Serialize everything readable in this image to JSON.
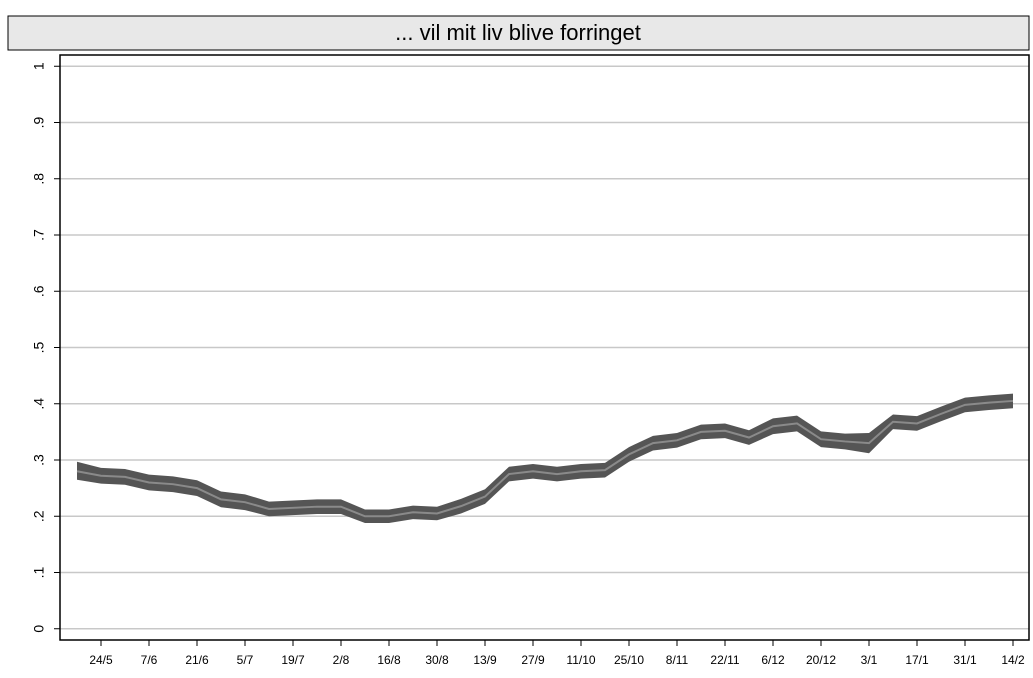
{
  "chart_data": {
    "type": "line",
    "title": "... vil mit liv blive forringet",
    "categories": [
      null,
      "24/5",
      null,
      "7/6",
      null,
      "21/6",
      null,
      "5/7",
      null,
      "19/7",
      null,
      "2/8",
      null,
      "16/8",
      null,
      "30/8",
      null,
      "13/9",
      null,
      "27/9",
      null,
      "11/10",
      null,
      "25/10",
      null,
      "8/11",
      null,
      "22/11",
      null,
      "6/12",
      null,
      "20/12",
      null,
      "3/1",
      null,
      "17/1",
      null,
      "31/1",
      null,
      "14/2"
    ],
    "series": [
      {
        "color": "#555555",
        "line_color": "#8a8a8a",
        "values": [
          0.28,
          0.272,
          0.27,
          0.26,
          0.257,
          0.25,
          0.23,
          0.225,
          0.213,
          0.215,
          0.217,
          0.217,
          0.2,
          0.2,
          0.207,
          0.205,
          0.218,
          0.235,
          0.275,
          0.28,
          0.275,
          0.28,
          0.282,
          0.31,
          0.33,
          0.335,
          0.35,
          0.352,
          0.34,
          0.36,
          0.365,
          0.337,
          0.333,
          0.33,
          0.368,
          0.365,
          0.382,
          0.398,
          0.402,
          0.405
        ],
        "lower": [
          0.265,
          0.258,
          0.256,
          0.246,
          0.243,
          0.236,
          0.216,
          0.211,
          0.2,
          0.202,
          0.204,
          0.204,
          0.188,
          0.188,
          0.195,
          0.193,
          0.205,
          0.222,
          0.262,
          0.267,
          0.262,
          0.267,
          0.269,
          0.297,
          0.317,
          0.322,
          0.337,
          0.339,
          0.327,
          0.346,
          0.351,
          0.323,
          0.319,
          0.312,
          0.355,
          0.352,
          0.369,
          0.385,
          0.389,
          0.392
        ],
        "upper": [
          0.297,
          0.286,
          0.284,
          0.274,
          0.271,
          0.264,
          0.244,
          0.239,
          0.226,
          0.228,
          0.23,
          0.23,
          0.212,
          0.212,
          0.219,
          0.217,
          0.231,
          0.248,
          0.288,
          0.293,
          0.288,
          0.293,
          0.295,
          0.323,
          0.343,
          0.348,
          0.363,
          0.365,
          0.353,
          0.374,
          0.379,
          0.351,
          0.347,
          0.348,
          0.381,
          0.378,
          0.395,
          0.411,
          0.415,
          0.418
        ]
      }
    ],
    "ylim": [
      -0.02,
      1.02
    ],
    "yticks": [
      0,
      {
        "value": 0.1,
        "label": ".1"
      },
      {
        "value": 0.2,
        "label": ".2"
      },
      {
        "value": 0.3,
        "label": ".3"
      },
      {
        "value": 0.4,
        "label": ".4"
      },
      {
        "value": 0.5,
        "label": ".5"
      },
      {
        "value": 0.6,
        "label": ".6"
      },
      {
        "value": 0.7,
        "label": ".7"
      },
      {
        "value": 0.8,
        "label": ".8"
      },
      {
        "value": 0.9,
        "label": ".9"
      },
      1
    ],
    "grid": true
  }
}
